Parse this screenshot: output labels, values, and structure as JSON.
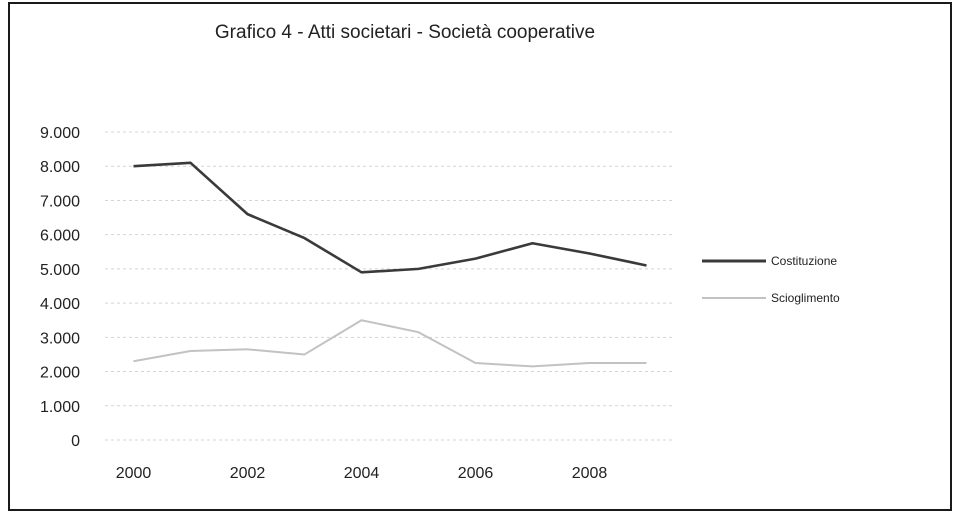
{
  "chart_data": {
    "type": "line",
    "title": "Grafico 4 - Atti societari - Società cooperative",
    "xlabel": "",
    "ylabel": "",
    "x": [
      2000,
      2001,
      2002,
      2003,
      2004,
      2005,
      2006,
      2007,
      2008,
      2009
    ],
    "x_ticks": [
      "2000",
      "2002",
      "2004",
      "2006",
      "2008"
    ],
    "x_tick_values": [
      2000,
      2002,
      2004,
      2006,
      2008
    ],
    "y_ticks": [
      "0",
      "1.000",
      "2.000",
      "3.000",
      "4.000",
      "5.000",
      "6.000",
      "7.000",
      "8.000",
      "9.000"
    ],
    "ylim": [
      0,
      9000
    ],
    "grid": true,
    "legend_position": "right",
    "series": [
      {
        "name": "Costituzione",
        "color": "#3a3a3a",
        "values": [
          8000,
          8100,
          6600,
          5900,
          4900,
          5000,
          5300,
          5750,
          5450,
          5100
        ]
      },
      {
        "name": "Scioglimento",
        "color": "#c2c2c2",
        "values": [
          2300,
          2600,
          2650,
          2500,
          3500,
          3150,
          2250,
          2150,
          2250,
          2250
        ]
      }
    ]
  }
}
